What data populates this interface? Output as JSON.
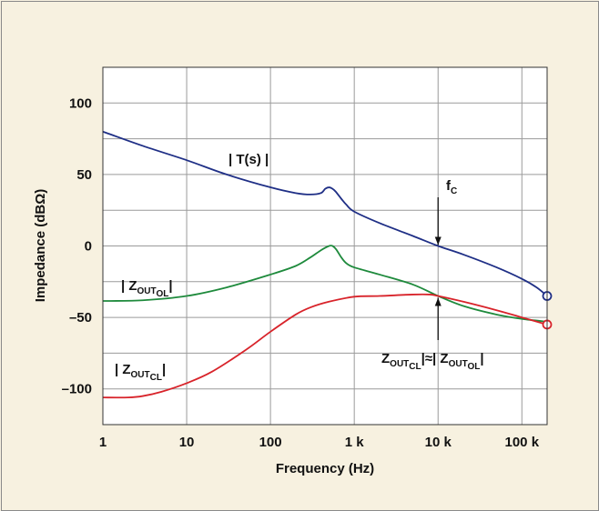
{
  "chart_data": {
    "type": "line",
    "xlabel": "Frequency (Hz)",
    "ylabel": "Impedance (dBΩ)",
    "x_scale": "log",
    "xlim": [
      1,
      200000
    ],
    "ylim": [
      -125,
      125
    ],
    "x_ticks": [
      {
        "value": 1,
        "label": "1"
      },
      {
        "value": 10,
        "label": "10"
      },
      {
        "value": 100,
        "label": "100"
      },
      {
        "value": 1000,
        "label": "1 k"
      },
      {
        "value": 10000,
        "label": "10 k"
      },
      {
        "value": 100000,
        "label": "100 k"
      }
    ],
    "y_ticks": [
      {
        "value": 100,
        "label": "100"
      },
      {
        "value": 50,
        "label": "50"
      },
      {
        "value": 0,
        "label": "0"
      },
      {
        "value": -50,
        "label": "–50"
      },
      {
        "value": -100,
        "label": "–100"
      }
    ],
    "grid": true,
    "series": [
      {
        "key": "T",
        "color": "#1f2f86",
        "end_marker": true,
        "x": [
          1,
          3,
          10,
          30,
          100,
          200,
          300,
          400,
          450,
          500,
          550,
          600,
          700,
          800,
          1000,
          2000,
          5000,
          10000,
          20000,
          50000,
          100000,
          150000,
          200000
        ],
        "y": [
          80,
          70,
          60,
          50,
          41,
          37,
          36,
          37,
          40,
          41,
          40,
          38,
          33,
          29,
          24,
          16,
          7,
          0,
          -6,
          -15,
          -23,
          -29,
          -35
        ]
      },
      {
        "key": "ZOL",
        "color": "#1e8a3c",
        "end_marker": false,
        "x": [
          1,
          3,
          10,
          30,
          100,
          200,
          300,
          400,
          500,
          550,
          600,
          650,
          700,
          800,
          1000,
          2000,
          5000,
          10000,
          20000,
          50000,
          100000,
          200000
        ],
        "y": [
          -38.5,
          -38,
          -35,
          -29,
          -20,
          -14,
          -8,
          -3,
          0,
          0,
          -2,
          -5,
          -8,
          -12,
          -15,
          -20,
          -27,
          -35,
          -42,
          -48,
          -51,
          -53
        ]
      },
      {
        "key": "ZCL",
        "color": "#d8232a",
        "end_marker": true,
        "x": [
          1,
          2,
          3,
          5,
          10,
          20,
          50,
          100,
          200,
          300,
          500,
          1000,
          2000,
          5000,
          8000,
          10000,
          20000,
          50000,
          100000,
          200000
        ],
        "y": [
          -106,
          -106,
          -105,
          -102,
          -96,
          -88,
          -73,
          -60,
          -48,
          -43,
          -39,
          -35.5,
          -35,
          -34,
          -34,
          -35,
          -39,
          -45,
          -50,
          -55
        ]
      }
    ],
    "annotations": [
      {
        "key": "T",
        "text": "| T(s) |",
        "sub": "",
        "tail": ""
      },
      {
        "key": "ZOL",
        "text": "| Z",
        "sub": "OUT",
        "sub2": "OL",
        "tail": "|"
      },
      {
        "key": "ZCL",
        "text": "| Z",
        "sub": "OUT",
        "sub2": "CL",
        "tail": "|"
      },
      {
        "key": "FC",
        "text": "f",
        "sub": "C",
        "tail": ""
      },
      {
        "key": "EQ",
        "text": "Z",
        "sub": "OUT",
        "sub2": "CL",
        "mid": "|≈| Z",
        "sub3": "OUT",
        "sub4": "OL",
        "tail": "|"
      }
    ]
  }
}
